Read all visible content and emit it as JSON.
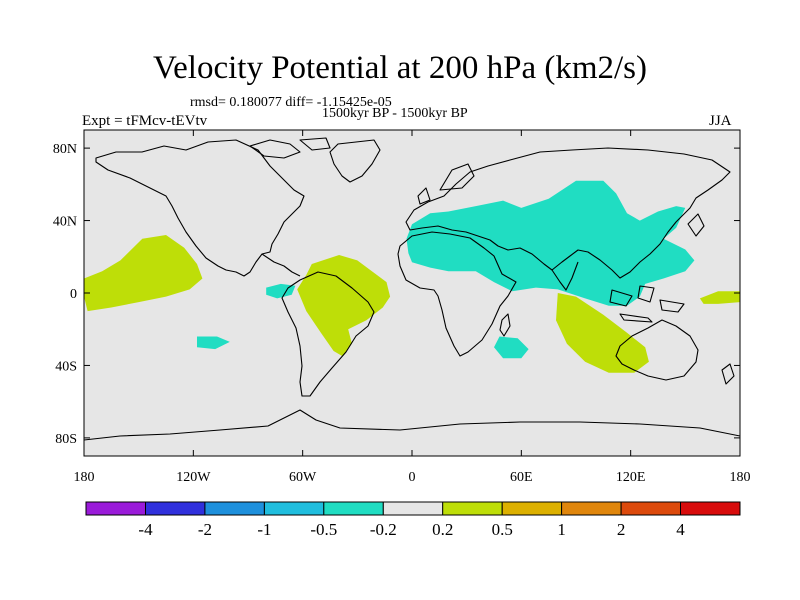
{
  "title": "Velocity Potential at 200 hPa (km2/s)",
  "stats_line": "rmsd= 0.180077 diff= -1.15425e-05",
  "period_line": "1500kyr BP - 1500kyr BP",
  "experiment": "Expt = tFMcv-tEVtv",
  "season": "JJA",
  "colors": {
    "ocean_background": "#e6e6e6",
    "negative_fill": "#20ddc2",
    "positive_fill": "#bede08",
    "coastline": "#000000"
  },
  "axes": {
    "lon_labels": [
      "180",
      "120W",
      "60W",
      "0",
      "60E",
      "120E",
      "180"
    ],
    "lon_values": [
      -180,
      -120,
      -60,
      0,
      60,
      120,
      180
    ],
    "lat_labels": [
      "80N",
      "40N",
      "0",
      "40S",
      "80S"
    ],
    "lat_values": [
      80,
      40,
      0,
      -40,
      -80
    ]
  },
  "colorbar": {
    "labels": [
      "-4",
      "-2",
      "-1",
      "-0.5",
      "-0.2",
      "0.2",
      "0.5",
      "1",
      "2",
      "4"
    ],
    "colors": [
      "#9a1bd9",
      "#3030dc",
      "#1e90dc",
      "#20bede",
      "#20ddc2",
      "#e6e6e6",
      "#bede08",
      "#dcb000",
      "#e0860c",
      "#dc4a0c",
      "#d80c0c"
    ]
  },
  "anomaly_regions": [
    {
      "name": "pos-east-pacific",
      "sign": "positive",
      "points": [
        [
          -148,
          30
        ],
        [
          -135,
          32
        ],
        [
          -125,
          25
        ],
        [
          -118,
          16
        ],
        [
          -115,
          8
        ],
        [
          -122,
          2
        ],
        [
          -135,
          -2
        ],
        [
          -150,
          -5
        ],
        [
          -165,
          -8
        ],
        [
          -178,
          -10
        ],
        [
          -180,
          -2
        ],
        [
          -180,
          8
        ],
        [
          -170,
          12
        ],
        [
          -160,
          18
        ]
      ]
    },
    {
      "name": "pos-atlantic",
      "sign": "positive",
      "points": [
        [
          -55,
          16
        ],
        [
          -40,
          21
        ],
        [
          -30,
          18
        ],
        [
          -22,
          12
        ],
        [
          -14,
          6
        ],
        [
          -12,
          -2
        ],
        [
          -16,
          -8
        ],
        [
          -25,
          -15
        ],
        [
          -35,
          -20
        ],
        [
          -33,
          -28
        ],
        [
          -38,
          -35
        ],
        [
          -43,
          -32
        ],
        [
          -50,
          -22
        ],
        [
          -58,
          -10
        ],
        [
          -63,
          2
        ],
        [
          -58,
          10
        ]
      ]
    },
    {
      "name": "pos-australia",
      "sign": "positive",
      "points": [
        [
          80,
          0
        ],
        [
          90,
          -2
        ],
        [
          105,
          -12
        ],
        [
          118,
          -22
        ],
        [
          128,
          -30
        ],
        [
          130,
          -38
        ],
        [
          122,
          -44
        ],
        [
          108,
          -44
        ],
        [
          95,
          -38
        ],
        [
          85,
          -28
        ],
        [
          79,
          -15
        ]
      ]
    },
    {
      "name": "pos-west-pacific",
      "sign": "positive",
      "points": [
        [
          158,
          -3
        ],
        [
          168,
          1
        ],
        [
          180,
          1
        ],
        [
          180,
          -5
        ],
        [
          168,
          -6
        ],
        [
          160,
          -6
        ]
      ]
    },
    {
      "name": "neg-eurasia",
      "sign": "negative",
      "points": [
        [
          0,
          38
        ],
        [
          10,
          44
        ],
        [
          20,
          45
        ],
        [
          35,
          48
        ],
        [
          50,
          51
        ],
        [
          60,
          47
        ],
        [
          75,
          52
        ],
        [
          90,
          62
        ],
        [
          105,
          62
        ],
        [
          112,
          55
        ],
        [
          118,
          44
        ],
        [
          125,
          40
        ],
        [
          135,
          45
        ],
        [
          145,
          48
        ],
        [
          150,
          47
        ],
        [
          145,
          36
        ],
        [
          138,
          30
        ],
        [
          150,
          24
        ],
        [
          155,
          18
        ],
        [
          150,
          12
        ],
        [
          138,
          8
        ],
        [
          128,
          5
        ],
        [
          125,
          -2
        ],
        [
          118,
          -7
        ],
        [
          108,
          -7
        ],
        [
          95,
          -3
        ],
        [
          80,
          2
        ],
        [
          68,
          3
        ],
        [
          55,
          1
        ],
        [
          45,
          6
        ],
        [
          35,
          12
        ],
        [
          20,
          12
        ],
        [
          10,
          14
        ],
        [
          0,
          17
        ],
        [
          -2,
          22
        ],
        [
          -3,
          30
        ]
      ]
    },
    {
      "name": "neg-tropical-atlantic",
      "sign": "negative",
      "points": [
        [
          -80,
          3
        ],
        [
          -72,
          5
        ],
        [
          -64,
          4
        ],
        [
          -66,
          -1
        ],
        [
          -74,
          -3
        ],
        [
          -80,
          -1
        ]
      ]
    },
    {
      "name": "neg-south-pacific",
      "sign": "negative",
      "points": [
        [
          -118,
          -24
        ],
        [
          -107,
          -24
        ],
        [
          -100,
          -27
        ],
        [
          -108,
          -31
        ],
        [
          -118,
          -30
        ]
      ]
    },
    {
      "name": "neg-south-indian",
      "sign": "negative",
      "points": [
        [
          48,
          -24
        ],
        [
          58,
          -25
        ],
        [
          64,
          -31
        ],
        [
          60,
          -36
        ],
        [
          50,
          -36
        ],
        [
          45,
          -30
        ]
      ]
    }
  ]
}
